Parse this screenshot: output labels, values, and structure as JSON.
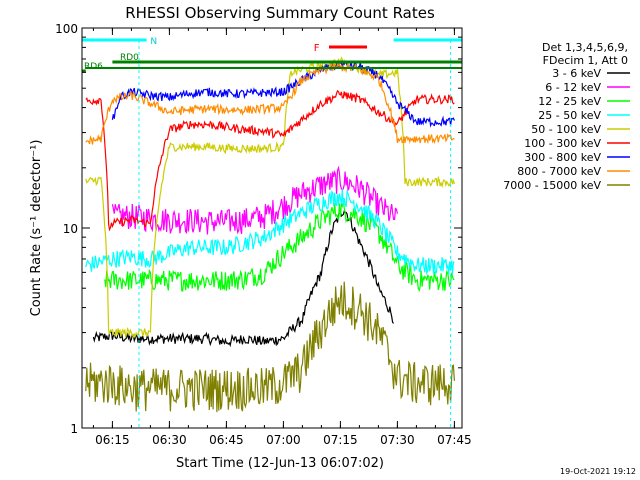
{
  "chart_data": {
    "type": "line",
    "title": "RHESSI Observing Summary Count Rates",
    "xlabel": "Start Time (12-Jun-13 06:07:02)",
    "ylabel": "Count Rate (s⁻¹ detector⁻¹)",
    "y_scale": "log",
    "ylim": [
      1,
      100
    ],
    "xlim": [
      "06:07",
      "07:47"
    ],
    "x_ticks": [
      "06:15",
      "06:30",
      "06:45",
      "07:00",
      "07:15",
      "07:30",
      "07:45"
    ],
    "y_ticks": [
      "1",
      "10",
      "100"
    ],
    "legend_header": [
      "Det 1,3,4,5,6,9,",
      "FDecim 1, Att 0"
    ],
    "legend_position": "right",
    "timestamp": "19-Oct-2021 19:12",
    "annotations": {
      "attenuator_label": "N",
      "rd0_label": "RD0",
      "rd6_label": "RD6",
      "flare_label": "F"
    },
    "series": [
      {
        "name": "3 - 6 keV",
        "color": "#000000",
        "x": [
          "06:10",
          "06:15",
          "06:20",
          "06:25",
          "06:30",
          "06:35",
          "06:40",
          "06:45",
          "06:50",
          "06:55",
          "07:00",
          "07:05",
          "07:10",
          "07:13",
          "07:16",
          "07:20",
          "07:25",
          "07:29"
        ],
        "values": [
          2.8,
          2.9,
          2.8,
          2.8,
          2.8,
          2.8,
          2.8,
          2.7,
          2.8,
          2.7,
          2.8,
          3.5,
          6.0,
          10.0,
          12.5,
          8.5,
          5.0,
          3.5
        ]
      },
      {
        "name": "6 - 12 keV",
        "color": "#ff00ff",
        "x": [
          "06:15",
          "06:20",
          "06:25",
          "06:30",
          "06:35",
          "06:40",
          "06:45",
          "06:50",
          "06:55",
          "07:00",
          "07:05",
          "07:10",
          "07:15",
          "07:20",
          "07:25",
          "07:30"
        ],
        "values": [
          11.5,
          11.5,
          11.2,
          11.0,
          11.0,
          10.8,
          10.8,
          11.0,
          11.5,
          13.0,
          15.0,
          16.5,
          17.5,
          16.0,
          13.0,
          11.0
        ]
      },
      {
        "name": "12 - 25 keV",
        "color": "#00ff00",
        "x": [
          "06:13",
          "06:20",
          "06:25",
          "06:30",
          "06:35",
          "06:40",
          "06:45",
          "06:50",
          "06:55",
          "07:00",
          "07:05",
          "07:10",
          "07:15",
          "07:20",
          "07:25",
          "07:30",
          "07:35",
          "07:45"
        ],
        "values": [
          5.5,
          5.5,
          5.5,
          5.5,
          5.5,
          5.5,
          5.5,
          5.6,
          6.0,
          7.5,
          9.0,
          11.0,
          12.5,
          11.5,
          9.5,
          6.5,
          5.5,
          5.5
        ]
      },
      {
        "name": "25 - 50 keV",
        "color": "#00ffff",
        "x": [
          "06:08",
          "06:15",
          "06:20",
          "06:25",
          "06:30",
          "06:35",
          "06:40",
          "06:45",
          "06:50",
          "06:55",
          "07:00",
          "07:05",
          "07:10",
          "07:15",
          "07:20",
          "07:25",
          "07:30",
          "07:35",
          "07:45"
        ],
        "values": [
          6.5,
          7.0,
          7.2,
          7.0,
          7.5,
          8.0,
          8.0,
          8.0,
          8.5,
          9.0,
          10.5,
          12.0,
          13.5,
          14.5,
          13.0,
          10.5,
          7.5,
          6.5,
          6.5
        ]
      },
      {
        "name": "50 - 100 keV",
        "color": "#cccc00",
        "x": [
          "06:08",
          "06:12",
          "06:14",
          "06:20",
          "06:25",
          "06:30",
          "06:35",
          "06:40",
          "06:45",
          "06:50",
          "06:55",
          "07:00",
          "07:02",
          "07:10",
          "07:15",
          "07:20",
          "07:25",
          "07:30",
          "07:32",
          "07:40",
          "07:45"
        ],
        "values": [
          17.0,
          17.5,
          3.0,
          3.0,
          3.0,
          25.5,
          25.5,
          25.5,
          25.0,
          25.0,
          25.0,
          25.5,
          60.0,
          65.0,
          68.0,
          63.0,
          58.0,
          60.0,
          17.0,
          17.0,
          17.0
        ]
      },
      {
        "name": "100 - 300 keV",
        "color": "#ff0000",
        "x": [
          "06:08",
          "06:12",
          "06:14",
          "06:15",
          "06:20",
          "06:25",
          "06:30",
          "06:35",
          "06:40",
          "06:45",
          "06:50",
          "06:55",
          "07:00",
          "07:05",
          "07:10",
          "07:15",
          "07:20",
          "07:25",
          "07:30",
          "07:35",
          "07:45"
        ],
        "values": [
          43.0,
          44.0,
          10.0,
          10.5,
          11.0,
          10.5,
          31.0,
          33.0,
          33.0,
          32.0,
          31.0,
          30.5,
          29.0,
          35.0,
          42.0,
          47.0,
          44.0,
          38.0,
          33.0,
          44.0,
          44.0
        ]
      },
      {
        "name": "300 - 800 keV",
        "color": "#0000ff",
        "x": [
          "06:15",
          "06:17",
          "06:20",
          "06:25",
          "06:30",
          "06:35",
          "06:40",
          "06:45",
          "06:50",
          "06:55",
          "07:00",
          "07:05",
          "07:10",
          "07:15",
          "07:20",
          "07:25",
          "07:30",
          "07:35",
          "07:45"
        ],
        "values": [
          34.0,
          45.0,
          48.0,
          46.0,
          45.0,
          47.0,
          48.0,
          47.0,
          47.0,
          47.5,
          48.0,
          55.0,
          62.0,
          66.0,
          64.0,
          58.0,
          42.0,
          34.0,
          34.0
        ]
      },
      {
        "name": "800 - 7000 keV",
        "color": "#ff8c00",
        "x": [
          "06:08",
          "06:12",
          "06:15",
          "06:20",
          "06:25",
          "06:30",
          "06:35",
          "06:40",
          "06:45",
          "06:50",
          "06:55",
          "07:00",
          "07:05",
          "07:10",
          "07:15",
          "07:20",
          "07:25",
          "07:30",
          "07:35",
          "07:45"
        ],
        "values": [
          27.0,
          28.0,
          44.0,
          46.0,
          42.0,
          38.0,
          39.0,
          39.5,
          39.0,
          39.0,
          39.5,
          40.0,
          55.0,
          62.0,
          64.0,
          62.0,
          56.0,
          28.0,
          28.0,
          28.0
        ]
      },
      {
        "name": "7000 - 15000 keV",
        "color": "#808000",
        "x": [
          "06:08",
          "06:15",
          "06:20",
          "06:25",
          "06:30",
          "06:35",
          "06:40",
          "06:45",
          "06:50",
          "06:55",
          "07:00",
          "07:05",
          "07:10",
          "07:15",
          "07:20",
          "07:25",
          "07:30",
          "07:35",
          "07:45"
        ],
        "values": [
          1.7,
          1.7,
          1.6,
          1.6,
          1.6,
          1.6,
          1.6,
          1.6,
          1.6,
          1.6,
          1.7,
          2.0,
          3.2,
          4.5,
          4.0,
          3.0,
          1.8,
          1.7,
          1.7
        ]
      }
    ]
  }
}
